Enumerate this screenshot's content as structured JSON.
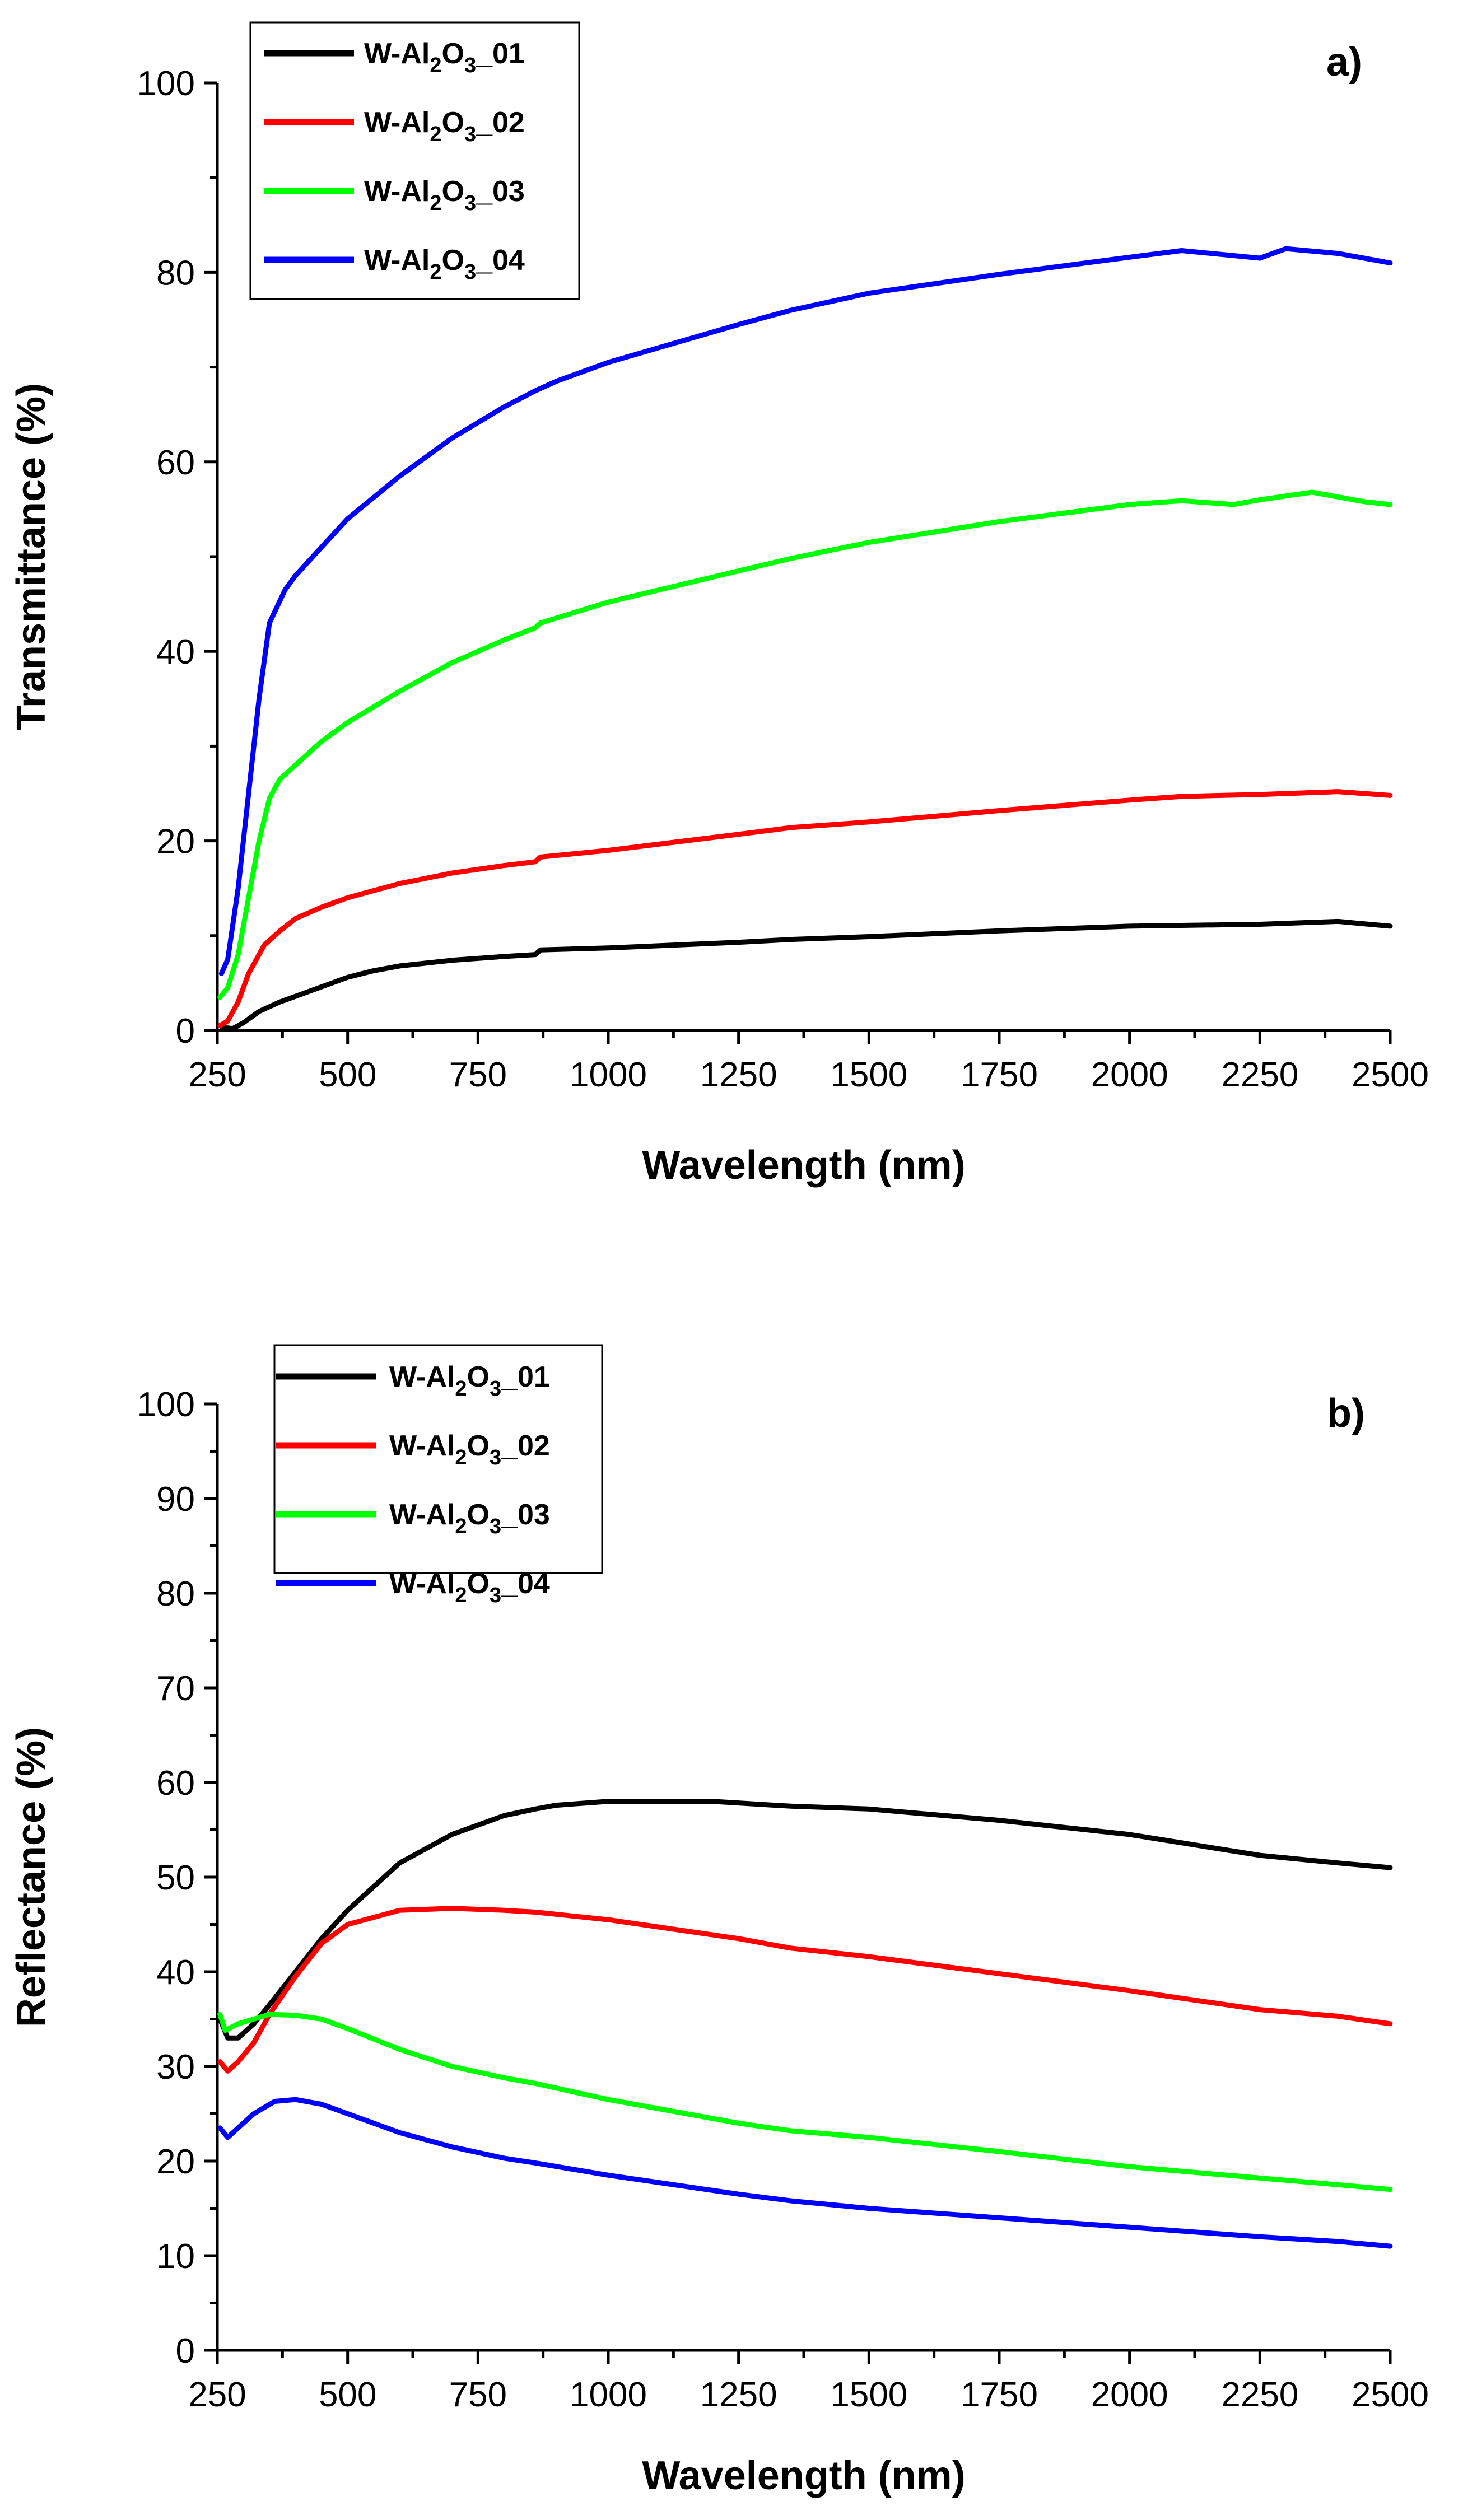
{
  "chart_data": [
    {
      "type": "line",
      "panel_label": "a)",
      "xlabel": "Wavelength (nm)",
      "ylabel": "Transmittance (%)",
      "xlim": [
        250,
        2500
      ],
      "ylim": [
        0,
        100
      ],
      "xticks": [
        250,
        500,
        750,
        1000,
        1250,
        1500,
        1750,
        2000,
        2250,
        2500
      ],
      "yticks": [
        0,
        20,
        40,
        60,
        80,
        100
      ],
      "legend_position": "top-left",
      "series": [
        {
          "name": "W-Al2O3_01",
          "label_parts": [
            "W-Al",
            "2",
            "O",
            "3",
            "_01"
          ],
          "color": "#000000",
          "points": [
            [
              260,
              0.3
            ],
            [
              280,
              0.2
            ],
            [
              300,
              0.8
            ],
            [
              330,
              2.0
            ],
            [
              370,
              3.0
            ],
            [
              400,
              3.6
            ],
            [
              450,
              4.6
            ],
            [
              500,
              5.6
            ],
            [
              550,
              6.3
            ],
            [
              600,
              6.8
            ],
            [
              700,
              7.4
            ],
            [
              800,
              7.8
            ],
            [
              860,
              8.0
            ],
            [
              870,
              8.5
            ],
            [
              1000,
              8.7
            ],
            [
              1250,
              9.3
            ],
            [
              1350,
              9.6
            ],
            [
              1500,
              9.9
            ],
            [
              1750,
              10.5
            ],
            [
              2000,
              11.0
            ],
            [
              2250,
              11.2
            ],
            [
              2400,
              11.5
            ],
            [
              2500,
              11.0
            ]
          ]
        },
        {
          "name": "W-Al2O3_02",
          "label_parts": [
            "W-Al",
            "2",
            "O",
            "3",
            "_02"
          ],
          "color": "#ff0000",
          "points": [
            [
              255,
              0.5
            ],
            [
              270,
              1.0
            ],
            [
              290,
              3.0
            ],
            [
              310,
              6.0
            ],
            [
              340,
              9.0
            ],
            [
              370,
              10.5
            ],
            [
              400,
              11.8
            ],
            [
              450,
              13.0
            ],
            [
              500,
              14.0
            ],
            [
              600,
              15.5
            ],
            [
              700,
              16.6
            ],
            [
              800,
              17.4
            ],
            [
              860,
              17.8
            ],
            [
              870,
              18.3
            ],
            [
              1000,
              19.0
            ],
            [
              1250,
              20.7
            ],
            [
              1350,
              21.4
            ],
            [
              1500,
              22.0
            ],
            [
              1750,
              23.2
            ],
            [
              2000,
              24.3
            ],
            [
              2100,
              24.7
            ],
            [
              2250,
              24.9
            ],
            [
              2400,
              25.2
            ],
            [
              2500,
              24.8
            ]
          ]
        },
        {
          "name": "W-Al2O3_03",
          "label_parts": [
            "W-Al",
            "2",
            "O",
            "3",
            "_03"
          ],
          "color": "#00ff00",
          "points": [
            [
              255,
              3.5
            ],
            [
              270,
              4.5
            ],
            [
              290,
              8.0
            ],
            [
              310,
              14.0
            ],
            [
              330,
              20.0
            ],
            [
              350,
              24.5
            ],
            [
              370,
              26.5
            ],
            [
              400,
              28.0
            ],
            [
              450,
              30.5
            ],
            [
              500,
              32.5
            ],
            [
              600,
              35.8
            ],
            [
              700,
              38.8
            ],
            [
              800,
              41.2
            ],
            [
              860,
              42.5
            ],
            [
              870,
              43.0
            ],
            [
              1000,
              45.2
            ],
            [
              1250,
              48.5
            ],
            [
              1350,
              49.8
            ],
            [
              1500,
              51.5
            ],
            [
              1750,
              53.7
            ],
            [
              2000,
              55.5
            ],
            [
              2100,
              55.9
            ],
            [
              2200,
              55.5
            ],
            [
              2250,
              56.0
            ],
            [
              2350,
              56.8
            ],
            [
              2450,
              55.8
            ],
            [
              2500,
              55.5
            ]
          ]
        },
        {
          "name": "W-Al2O3_04",
          "label_parts": [
            "W-Al",
            "2",
            "O",
            "3",
            "_04"
          ],
          "color": "#0000ff",
          "points": [
            [
              258,
              6.0
            ],
            [
              270,
              7.5
            ],
            [
              290,
              15.0
            ],
            [
              310,
              25.0
            ],
            [
              330,
              35.0
            ],
            [
              350,
              43.0
            ],
            [
              380,
              46.5
            ],
            [
              400,
              48.0
            ],
            [
              450,
              51.0
            ],
            [
              500,
              54.0
            ],
            [
              600,
              58.5
            ],
            [
              700,
              62.5
            ],
            [
              800,
              65.8
            ],
            [
              860,
              67.5
            ],
            [
              900,
              68.5
            ],
            [
              1000,
              70.5
            ],
            [
              1250,
              74.5
            ],
            [
              1350,
              76.0
            ],
            [
              1500,
              77.8
            ],
            [
              1750,
              79.8
            ],
            [
              2000,
              81.6
            ],
            [
              2100,
              82.3
            ],
            [
              2250,
              81.5
            ],
            [
              2300,
              82.5
            ],
            [
              2400,
              82.0
            ],
            [
              2500,
              81.0
            ]
          ]
        }
      ]
    },
    {
      "type": "line",
      "panel_label": "b)",
      "xlabel": "Wavelength (nm)",
      "ylabel": "Reflectance (%)",
      "xlim": [
        250,
        2500
      ],
      "ylim": [
        0,
        100
      ],
      "xticks": [
        250,
        500,
        750,
        1000,
        1250,
        1500,
        1750,
        2000,
        2250,
        2500
      ],
      "yticks": [
        0,
        10,
        20,
        30,
        40,
        50,
        60,
        70,
        80,
        90,
        100
      ],
      "legend_position": "top-left",
      "series": [
        {
          "name": "W-Al2O3_01",
          "label_parts": [
            "W-Al",
            "2",
            "O",
            "3",
            "_01"
          ],
          "color": "#000000",
          "points": [
            [
              255,
              35.0
            ],
            [
              270,
              33.0
            ],
            [
              290,
              33.0
            ],
            [
              320,
              34.5
            ],
            [
              350,
              36.5
            ],
            [
              400,
              40.0
            ],
            [
              450,
              43.5
            ],
            [
              500,
              46.5
            ],
            [
              600,
              51.5
            ],
            [
              700,
              54.5
            ],
            [
              800,
              56.5
            ],
            [
              860,
              57.2
            ],
            [
              900,
              57.6
            ],
            [
              1000,
              58.0
            ],
            [
              1200,
              58.0
            ],
            [
              1350,
              57.5
            ],
            [
              1500,
              57.2
            ],
            [
              1750,
              56.0
            ],
            [
              2000,
              54.5
            ],
            [
              2250,
              52.3
            ],
            [
              2400,
              51.5
            ],
            [
              2500,
              51.0
            ]
          ]
        },
        {
          "name": "W-Al2O3_02",
          "label_parts": [
            "W-Al",
            "2",
            "O",
            "3",
            "_02"
          ],
          "color": "#ff0000",
          "points": [
            [
              255,
              30.5
            ],
            [
              270,
              29.5
            ],
            [
              290,
              30.5
            ],
            [
              320,
              32.5
            ],
            [
              350,
              35.5
            ],
            [
              400,
              39.5
            ],
            [
              450,
              43.0
            ],
            [
              500,
              45.0
            ],
            [
              600,
              46.5
            ],
            [
              700,
              46.7
            ],
            [
              800,
              46.5
            ],
            [
              860,
              46.3
            ],
            [
              1000,
              45.5
            ],
            [
              1250,
              43.5
            ],
            [
              1350,
              42.5
            ],
            [
              1500,
              41.6
            ],
            [
              1750,
              39.8
            ],
            [
              2000,
              38.0
            ],
            [
              2250,
              36.0
            ],
            [
              2400,
              35.3
            ],
            [
              2500,
              34.5
            ]
          ]
        },
        {
          "name": "W-Al2O3_03",
          "label_parts": [
            "W-Al",
            "2",
            "O",
            "3",
            "_03"
          ],
          "color": "#00ff00",
          "points": [
            [
              255,
              35.5
            ],
            [
              265,
              33.8
            ],
            [
              290,
              34.5
            ],
            [
              320,
              35.0
            ],
            [
              350,
              35.5
            ],
            [
              400,
              35.4
            ],
            [
              450,
              35.0
            ],
            [
              500,
              34.0
            ],
            [
              600,
              31.8
            ],
            [
              700,
              30.0
            ],
            [
              800,
              28.8
            ],
            [
              860,
              28.2
            ],
            [
              1000,
              26.5
            ],
            [
              1250,
              24.0
            ],
            [
              1350,
              23.2
            ],
            [
              1500,
              22.5
            ],
            [
              1750,
              21.0
            ],
            [
              2000,
              19.4
            ],
            [
              2250,
              18.2
            ],
            [
              2400,
              17.5
            ],
            [
              2500,
              17.0
            ]
          ]
        },
        {
          "name": "W-Al2O3_04",
          "label_parts": [
            "W-Al",
            "2",
            "O",
            "3",
            "_04"
          ],
          "color": "#0000ff",
          "points": [
            [
              255,
              23.5
            ],
            [
              270,
              22.5
            ],
            [
              290,
              23.5
            ],
            [
              320,
              25.0
            ],
            [
              360,
              26.3
            ],
            [
              400,
              26.5
            ],
            [
              450,
              26.0
            ],
            [
              500,
              25.0
            ],
            [
              600,
              23.0
            ],
            [
              700,
              21.5
            ],
            [
              800,
              20.3
            ],
            [
              860,
              19.8
            ],
            [
              1000,
              18.5
            ],
            [
              1250,
              16.5
            ],
            [
              1350,
              15.8
            ],
            [
              1500,
              15.0
            ],
            [
              1750,
              14.0
            ],
            [
              2000,
              13.0
            ],
            [
              2250,
              12.0
            ],
            [
              2400,
              11.5
            ],
            [
              2500,
              11.0
            ]
          ]
        }
      ]
    }
  ]
}
